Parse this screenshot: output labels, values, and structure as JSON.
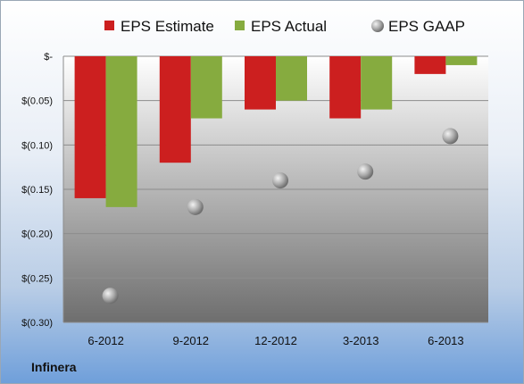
{
  "company": "Infinera",
  "chart_data": {
    "type": "bar",
    "title": "",
    "xlabel": "",
    "ylabel": "",
    "categories": [
      "6-2012",
      "9-2012",
      "12-2012",
      "3-2013",
      "6-2013"
    ],
    "series": [
      {
        "name": "EPS Estimate",
        "kind": "bar",
        "color": "#cc1f1f",
        "values": [
          -0.16,
          -0.12,
          -0.06,
          -0.07,
          -0.02
        ]
      },
      {
        "name": "EPS Actual",
        "kind": "bar",
        "color": "#86ab3f",
        "values": [
          -0.17,
          -0.07,
          -0.05,
          -0.06,
          -0.01
        ]
      },
      {
        "name": "EPS GAAP",
        "kind": "marker",
        "color": "#b5b5b5",
        "values": [
          -0.27,
          -0.17,
          -0.14,
          -0.13,
          -0.09
        ]
      }
    ],
    "ylim": [
      -0.3,
      0
    ],
    "yticks": [
      0,
      -0.05,
      -0.1,
      -0.15,
      -0.2,
      -0.25,
      -0.3
    ],
    "ytick_labels": [
      "$-",
      "$(0.05)",
      "$(0.10)",
      "$(0.15)",
      "$(0.20)",
      "$(0.25)",
      "$(0.30)"
    ],
    "grid": true,
    "legend_position": "top"
  }
}
